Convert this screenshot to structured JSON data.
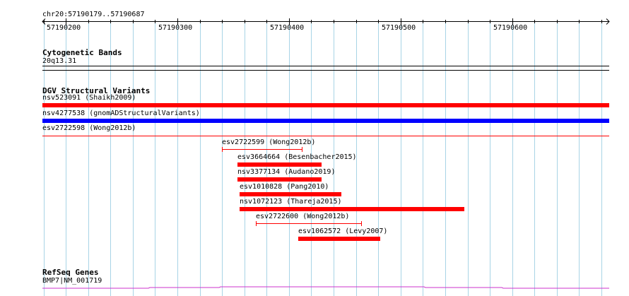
{
  "ruler": {
    "region_label": "chr20:57190179..57190687",
    "start": 57190179,
    "end": 57190687,
    "ticks": [
      {
        "pos": 57190200,
        "label": "57190200"
      },
      {
        "pos": 57190300,
        "label": "57190300"
      },
      {
        "pos": 57190400,
        "label": "57190400"
      },
      {
        "pos": 57190500,
        "label": "57190500"
      },
      {
        "pos": 57190600,
        "label": "57190600"
      }
    ]
  },
  "cytobands": {
    "title": "Cytogenetic Bands",
    "band_label": "20q13.31"
  },
  "dgv": {
    "title": "DGV Structural Variants",
    "features": [
      {
        "label": "nsv523091 (Shaikh2009)",
        "start": 57190179,
        "end": 57190687,
        "style": "thick",
        "color": "#ff0000"
      },
      {
        "label": "nsv4277538 (gnomADStructuralVariants)",
        "start": 57190179,
        "end": 57190687,
        "style": "thick",
        "color": "#0000ff"
      },
      {
        "label": "esv2722598 (Wong2012b)",
        "start": 57190179,
        "end": 57190687,
        "style": "thin",
        "color": "#ff0000"
      },
      {
        "label": "esv2722599 (Wong2012b)",
        "start": 57190340,
        "end": 57190412,
        "style": "bracket",
        "color": "#ff0000"
      },
      {
        "label": "esv3664664 (Besenbacher2015)",
        "start": 57190354,
        "end": 57190429,
        "style": "thick",
        "color": "#ff0000"
      },
      {
        "label": "nsv3377134 (Audano2019)",
        "start": 57190354,
        "end": 57190429,
        "style": "thick",
        "color": "#ff0000"
      },
      {
        "label": "esv1010828 (Pang2010)",
        "start": 57190356,
        "end": 57190447,
        "style": "thick",
        "color": "#ff0000"
      },
      {
        "label": "nsv1072123 (Thareja2015)",
        "start": 57190356,
        "end": 57190557,
        "style": "thick",
        "color": "#ff0000"
      },
      {
        "label": "esv2722600 (Wong2012b)",
        "start": 57190370,
        "end": 57190465,
        "style": "bracket",
        "color": "#ff0000"
      },
      {
        "label": "esv1062572 (Levy2007)",
        "start": 57190408,
        "end": 57190482,
        "style": "thick",
        "color": "#ff0000"
      }
    ]
  },
  "refseq": {
    "title": "RefSeq Genes",
    "gene_label": "BMP7|NM_001719",
    "color": "#cc33cc"
  },
  "colors": {
    "gridline": "#a8d4e6",
    "axis": "#000000"
  }
}
